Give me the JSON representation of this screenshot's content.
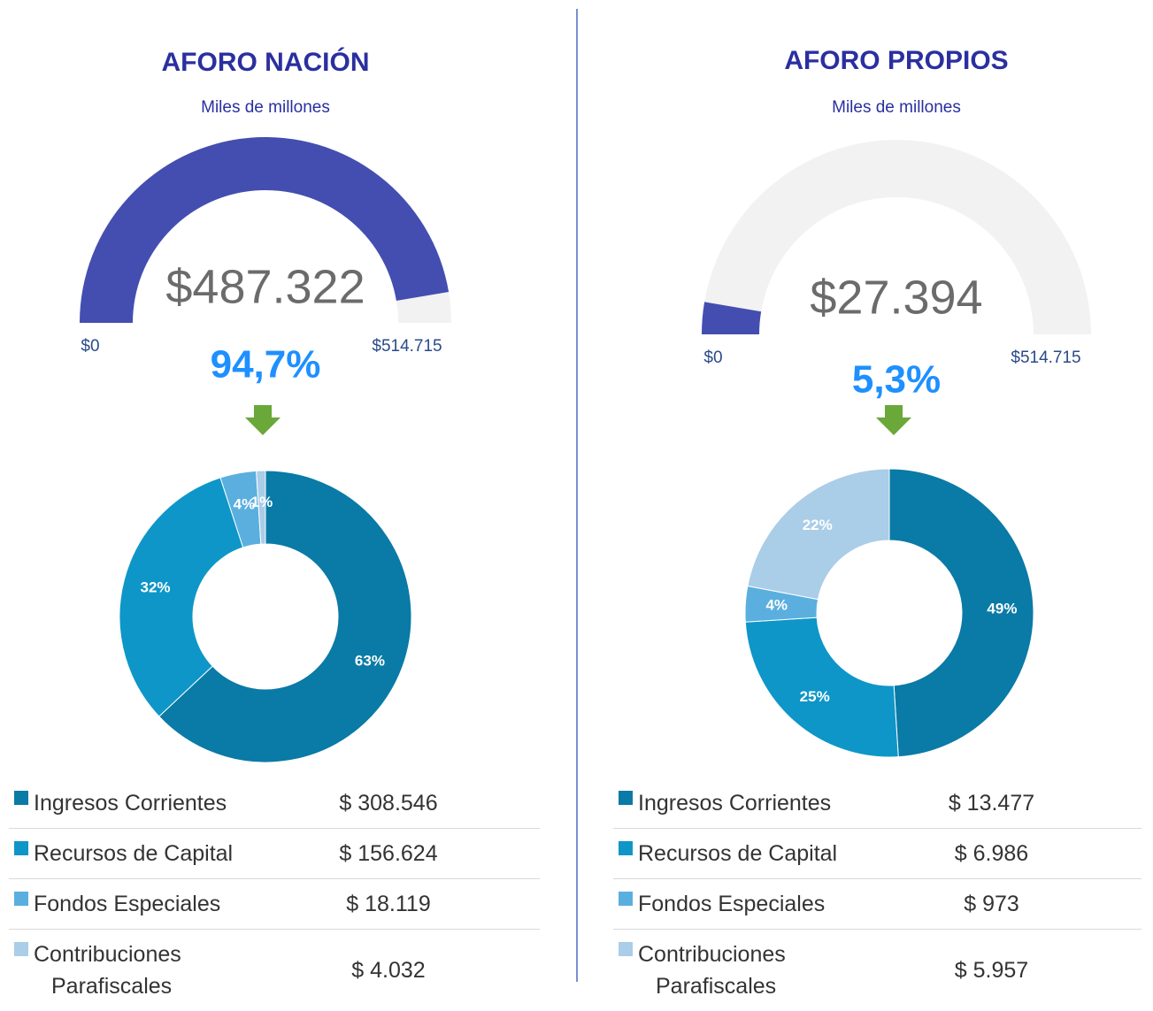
{
  "chart_data": [
    {
      "type": "gauge",
      "title": "AFORO NACIÓN",
      "subtitle": "Miles de millones",
      "value": 487322,
      "value_label": "$487.322",
      "ylim": [
        0,
        514715
      ],
      "yticks": [
        {
          "value": 0,
          "label": "$0"
        },
        {
          "value": 514715,
          "label": "$514.715"
        }
      ],
      "percent": 94.7,
      "percent_label": "94,7%",
      "color": "#434eb0",
      "track_color": "#f2f2f2"
    },
    {
      "type": "pie",
      "categories": [
        "Ingresos Corrientes",
        "Recursos de Capital",
        "Fondos Especiales",
        "Contribuciones Parafiscales"
      ],
      "values": [
        63,
        32,
        4,
        1
      ],
      "value_labels": [
        "63%",
        "32%",
        "4%",
        "1%"
      ],
      "colors": [
        "#0a7aa6",
        "#0e96c8",
        "#5aafdf",
        "#aacde8"
      ],
      "amounts": [
        308546,
        156624,
        18119,
        4032
      ],
      "amount_labels": [
        "$ 308.546",
        "$ 156.624",
        "$ 18.119",
        "$ 4.032"
      ]
    },
    {
      "type": "gauge",
      "title": "AFORO PROPIOS",
      "subtitle": "Miles de millones",
      "value": 27394,
      "value_label": "$27.394",
      "ylim": [
        0,
        514715
      ],
      "yticks": [
        {
          "value": 0,
          "label": "$0"
        },
        {
          "value": 514715,
          "label": "$514.715"
        }
      ],
      "percent": 5.3,
      "percent_label": "5,3%",
      "color": "#434eb0",
      "track_color": "#f2f2f2"
    },
    {
      "type": "pie",
      "categories": [
        "Ingresos Corrientes",
        "Recursos de Capital",
        "Fondos Especiales",
        "Contribuciones Parafiscales"
      ],
      "values": [
        49,
        25,
        4,
        22
      ],
      "value_labels": [
        "49%",
        "25%",
        "4%",
        "22%"
      ],
      "colors": [
        "#0a7aa6",
        "#0e96c8",
        "#5aafdf",
        "#aacde8"
      ],
      "amounts": [
        13477,
        6986,
        973,
        5957
      ],
      "amount_labels": [
        "$ 13.477",
        "$ 6.986",
        "$ 973",
        "$ 5.957"
      ]
    }
  ]
}
